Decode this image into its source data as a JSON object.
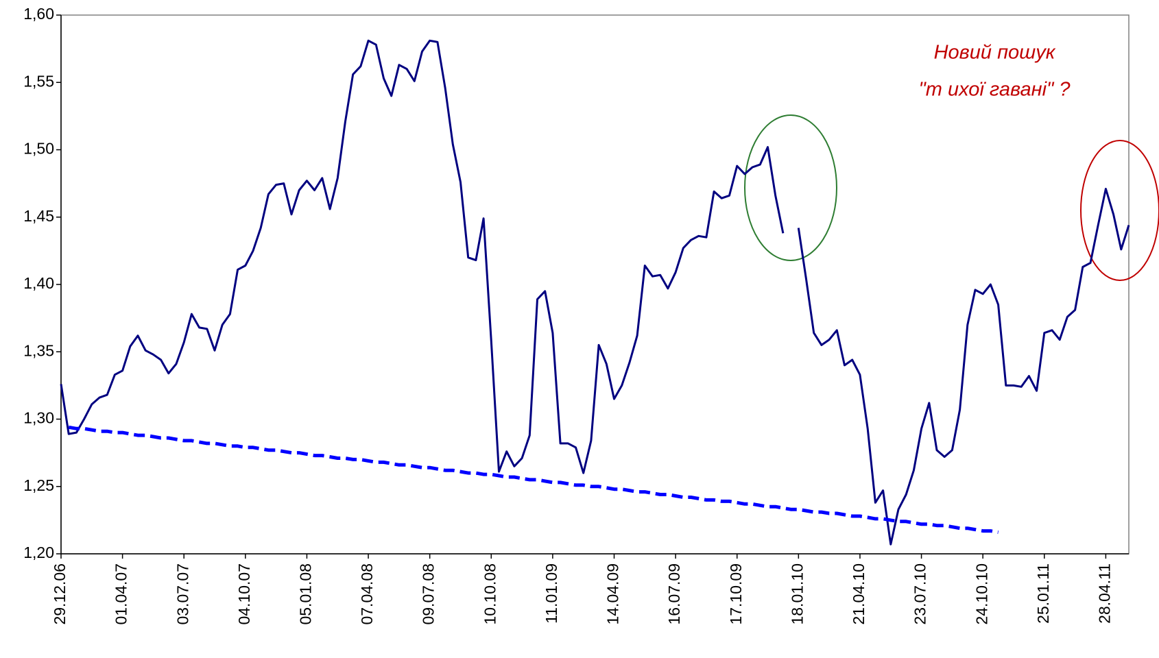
{
  "chart_data": {
    "type": "line",
    "annotations": [
      "Новий пошук",
      "\"т ихої гавані\" ?"
    ],
    "categories": [
      "29.12.06",
      null,
      null,
      null,
      null,
      null,
      null,
      null,
      "01.04.07",
      null,
      null,
      null,
      null,
      null,
      null,
      null,
      "03.07.07",
      null,
      null,
      null,
      null,
      null,
      null,
      null,
      "04.10.07",
      null,
      null,
      null,
      null,
      null,
      null,
      null,
      "05.01.08",
      null,
      null,
      null,
      null,
      null,
      null,
      null,
      "07.04.08",
      null,
      null,
      null,
      null,
      null,
      null,
      null,
      "09.07.08",
      null,
      null,
      null,
      null,
      null,
      null,
      null,
      "10.10.08",
      null,
      null,
      null,
      null,
      null,
      null,
      null,
      "11.01.09",
      null,
      null,
      null,
      null,
      null,
      null,
      null,
      "14.04.09",
      null,
      null,
      null,
      null,
      null,
      null,
      null,
      "16.07.09",
      null,
      null,
      null,
      null,
      null,
      null,
      null,
      "17.10.09",
      null,
      null,
      null,
      null,
      null,
      null,
      null,
      "18.01.10",
      null,
      null,
      null,
      null,
      null,
      null,
      null,
      "21.04.10",
      null,
      null,
      null,
      null,
      null,
      null,
      null,
      "23.07.10",
      null,
      null,
      null,
      null,
      null,
      null,
      null,
      "24.10.10",
      null,
      null,
      null,
      null,
      null,
      null,
      null,
      "25.01.11",
      null,
      null,
      null,
      null,
      null,
      null,
      null,
      "28.04.11",
      null,
      null,
      null
    ],
    "series": [
      {
        "color": "#000080",
        "dash": false,
        "values": [
          1.326,
          1.289,
          1.29,
          1.3,
          1.311,
          1.316,
          1.318,
          1.333,
          1.336,
          1.354,
          1.362,
          1.351,
          1.348,
          1.344,
          1.334,
          1.341,
          1.357,
          1.378,
          1.368,
          1.367,
          1.351,
          1.37,
          1.378,
          1.411,
          1.414,
          1.425,
          1.442,
          1.467,
          1.474,
          1.475,
          1.452,
          1.47,
          1.477,
          1.47,
          1.479,
          1.456,
          1.479,
          1.521,
          1.556,
          1.562,
          1.581,
          1.578,
          1.553,
          1.54,
          1.563,
          1.56,
          1.551,
          1.573,
          1.581,
          1.58,
          1.546,
          1.504,
          1.476,
          1.42,
          1.418,
          1.449,
          1.358,
          1.261,
          1.276,
          1.265,
          1.271,
          1.288,
          1.389,
          1.395,
          1.364,
          1.282,
          1.282,
          1.279,
          1.26,
          1.284,
          1.355,
          1.341,
          1.315,
          1.325,
          1.342,
          1.362,
          1.414,
          1.406,
          1.407,
          1.397,
          1.409,
          1.427,
          1.433,
          1.436,
          1.435,
          1.469,
          1.464,
          1.466,
          1.488,
          1.482,
          1.487,
          1.489,
          1.502,
          1.466,
          1.438,
          null,
          1.442,
          1.404,
          1.364,
          1.355,
          1.359,
          1.366,
          1.34,
          1.344,
          1.333,
          1.293,
          1.238,
          1.247,
          1.207,
          1.233,
          1.244,
          1.262,
          1.293,
          1.312,
          1.277,
          1.272,
          1.277,
          1.307,
          1.37,
          1.396,
          1.393,
          1.4,
          1.385,
          1.325,
          1.325,
          1.324,
          1.332,
          1.321,
          1.364,
          1.366,
          1.359,
          1.376,
          1.381,
          1.413,
          1.416,
          1.444,
          1.471,
          1.452,
          1.426,
          1.444
        ]
      },
      {
        "color": "#0000ff",
        "dash": true,
        "values": [
          null,
          1.294,
          1.293,
          1.293,
          1.292,
          1.291,
          1.291,
          1.29,
          1.29,
          1.289,
          1.288,
          1.288,
          1.287,
          1.286,
          1.286,
          1.285,
          1.284,
          1.284,
          1.283,
          1.282,
          1.282,
          1.281,
          1.28,
          1.28,
          1.279,
          1.279,
          1.278,
          1.277,
          1.277,
          1.276,
          1.275,
          1.275,
          1.274,
          1.273,
          1.273,
          1.272,
          1.271,
          1.271,
          1.27,
          1.27,
          1.269,
          1.268,
          1.268,
          1.267,
          1.266,
          1.266,
          1.265,
          1.264,
          1.264,
          1.263,
          1.262,
          1.262,
          1.261,
          1.26,
          1.26,
          1.259,
          1.259,
          1.258,
          1.257,
          1.257,
          1.256,
          1.255,
          1.255,
          1.254,
          1.253,
          1.253,
          1.252,
          1.251,
          1.251,
          1.25,
          1.25,
          1.249,
          1.248,
          1.248,
          1.247,
          1.246,
          1.246,
          1.245,
          1.244,
          1.244,
          1.243,
          1.242,
          1.242,
          1.241,
          1.24,
          1.24,
          1.239,
          1.239,
          1.238,
          1.237,
          1.237,
          1.236,
          1.235,
          1.235,
          1.234,
          1.233,
          1.233,
          1.232,
          1.231,
          1.231,
          1.23,
          1.23,
          1.229,
          1.228,
          1.228,
          1.227,
          1.226,
          1.226,
          1.225,
          1.224,
          1.224,
          1.223,
          1.222,
          1.222,
          1.221,
          1.221,
          1.22,
          1.219,
          1.219,
          1.218,
          1.217,
          1.217,
          1.216,
          null,
          null,
          null,
          null,
          null,
          null,
          null,
          null,
          null,
          null,
          null,
          null,
          null,
          null,
          null,
          null,
          null
        ]
      }
    ],
    "ylim": [
      1.2,
      1.6
    ],
    "yticks": [
      {
        "value": 1.2,
        "label": "1,20"
      },
      {
        "value": 1.25,
        "label": "1,25"
      },
      {
        "value": 1.3,
        "label": "1,30"
      },
      {
        "value": 1.35,
        "label": "1,35"
      },
      {
        "value": 1.4,
        "label": "1,40"
      },
      {
        "value": 1.45,
        "label": "1,45"
      },
      {
        "value": 1.5,
        "label": "1,50"
      },
      {
        "value": 1.55,
        "label": "1,55"
      },
      {
        "value": 1.6,
        "label": "1,60"
      }
    ],
    "grid": false
  }
}
